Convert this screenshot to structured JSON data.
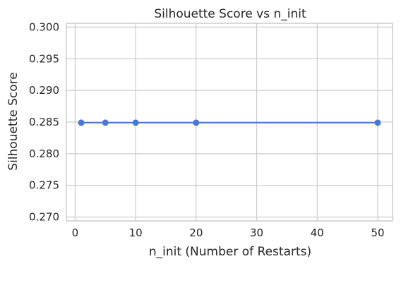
{
  "chart_data": {
    "type": "line",
    "title": "Silhouette Score vs n_init",
    "xlabel": "n_init (Number of Restarts)",
    "ylabel": "Silhouette Score",
    "x": [
      1,
      5,
      10,
      20,
      50
    ],
    "series": [
      {
        "values": [
          0.2849,
          0.2849,
          0.2849,
          0.2849,
          0.2849
        ]
      }
    ],
    "xlim": [
      -1.45,
      52.45
    ],
    "ylim": [
      0.2694,
      0.3006
    ],
    "xticks": [
      0,
      10,
      20,
      30,
      40,
      50
    ],
    "yticks": [
      0.27,
      0.275,
      0.28,
      0.285,
      0.29,
      0.295,
      0.3
    ],
    "xtick_labels": [
      "0",
      "10",
      "20",
      "30",
      "40",
      "50"
    ],
    "ytick_labels": [
      "0.270",
      "0.275",
      "0.280",
      "0.285",
      "0.290",
      "0.295",
      "0.300"
    ],
    "grid": true,
    "line_color": "#4878d0",
    "grid_color": "#cccccc",
    "axes_color": "#cccccc"
  }
}
